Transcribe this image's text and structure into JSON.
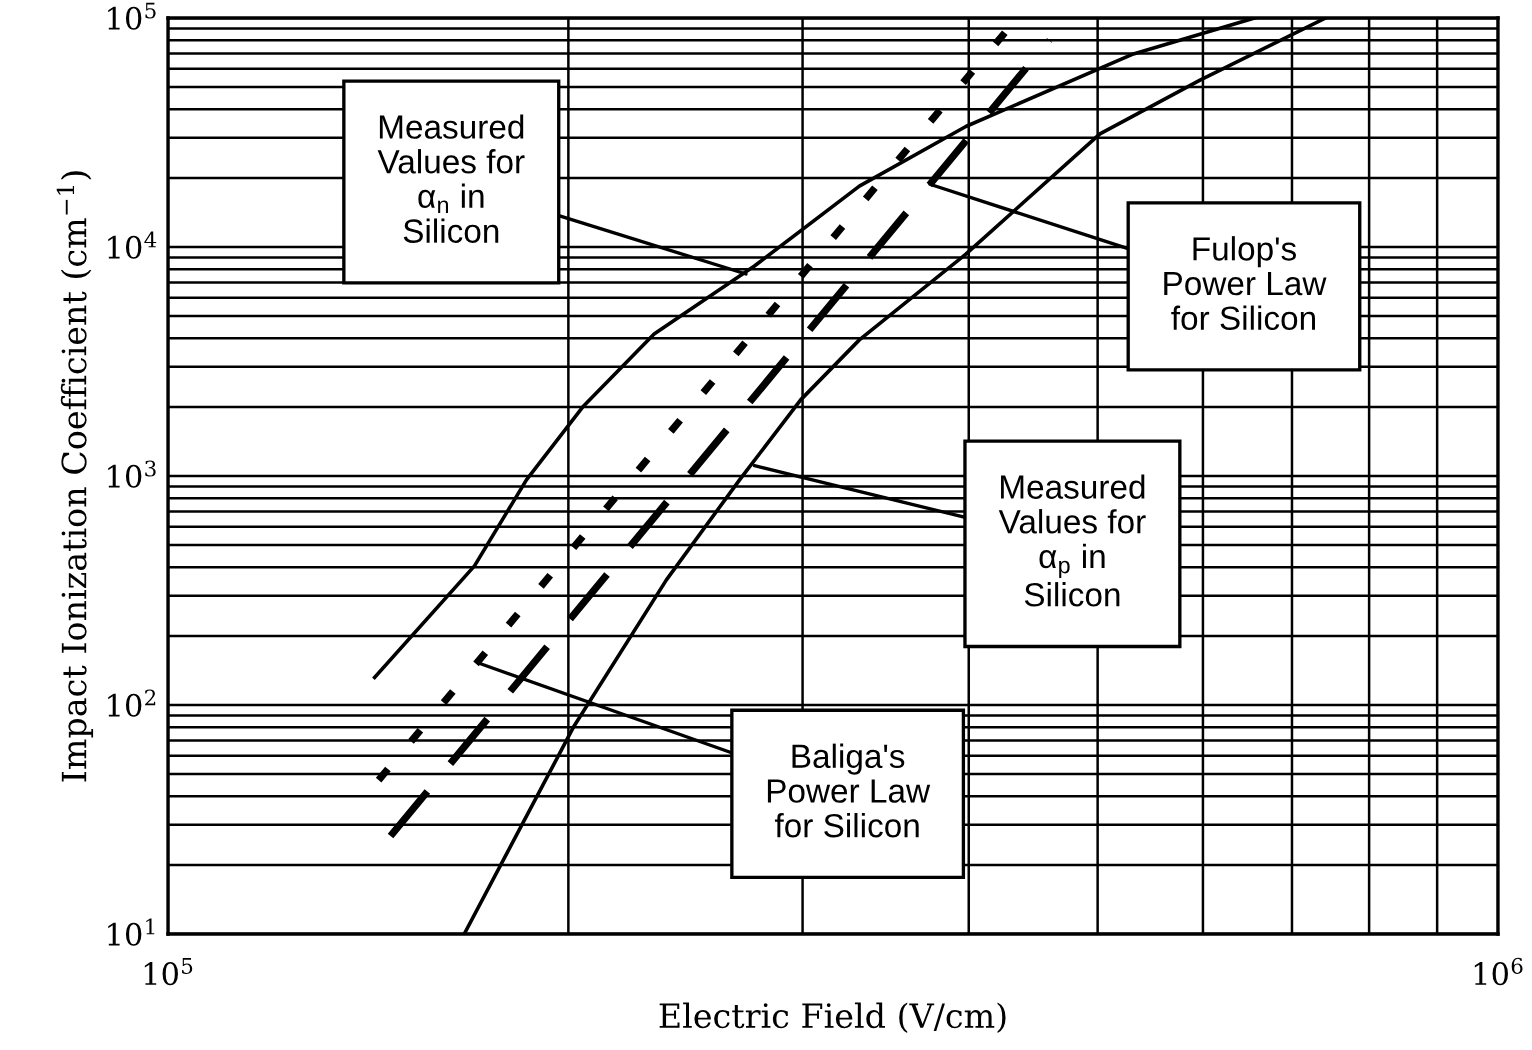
{
  "chart_data": {
    "type": "line",
    "xlabel": "Electric Field (V/cm)",
    "ylabel": "Impact Ionization Coefficient (cm$^{−1}$)",
    "log": "xy",
    "grid": true,
    "marker": "none",
    "xlim": [
      100000,
      1000000
    ],
    "xticks": [
      {
        "value": 100000,
        "label": "10$^{5}$"
      },
      {
        "value": 1000000,
        "label": "10$^{6}$"
      }
    ],
    "ylim": [
      10,
      100000
    ],
    "yticks": [
      {
        "value": 10,
        "label": "10$^{1}$"
      },
      {
        "value": 100,
        "label": "10$^{2}$"
      },
      {
        "value": 1000,
        "label": "10$^{3}$"
      },
      {
        "value": 10000,
        "label": "10$^{4}$"
      },
      {
        "value": 100000,
        "label": "10$^{5}$"
      }
    ],
    "series": [
      {
        "color": "#000000",
        "line_style": "solid",
        "x": [
          143000,
          170000,
          186000,
          205000,
          232000,
          276000,
          331000,
          398000,
          532000,
          656000
        ],
        "values": [
          132,
          405,
          962,
          2000,
          4170,
          8260,
          18450,
          33600,
          69700,
          100000
        ]
      },
      {
        "color": "#000000",
        "line_style": "solid",
        "x": [
          167000,
          202000,
          237000,
          269000,
          299000,
          331000,
          398000,
          502000,
          597000,
          742000
        ],
        "values": [
          10,
          81,
          352,
          962,
          2150,
          3930,
          9300,
          31200,
          53500,
          100000
        ]
      },
      {
        "color": "#000000",
        "line_style": "dotted",
        "x": [
          144000,
          435000
        ],
        "values": [
          47,
          100000
        ]
      },
      {
        "color": "#000000",
        "line_style": "dashed",
        "x": [
          147000,
          460000
        ],
        "values": [
          26.8,
          80200
        ]
      }
    ],
    "annotations": [
      {
        "text": "Measured\nValues for\nα$_{n}$ in\nSilicon",
        "x": 272000,
        "y": 7620
      },
      {
        "text": "Fulop's\nPower Law\nfor Silicon",
        "x": 374000,
        "y": 18800
      },
      {
        "text": "Measured\nValues for\nα$_{p}$ in\nSilicon",
        "x": 276000,
        "y": 1110
      },
      {
        "text": "Baliga's\nPower Law\nfor Silicon",
        "x": 172000,
        "y": 151
      }
    ]
  }
}
